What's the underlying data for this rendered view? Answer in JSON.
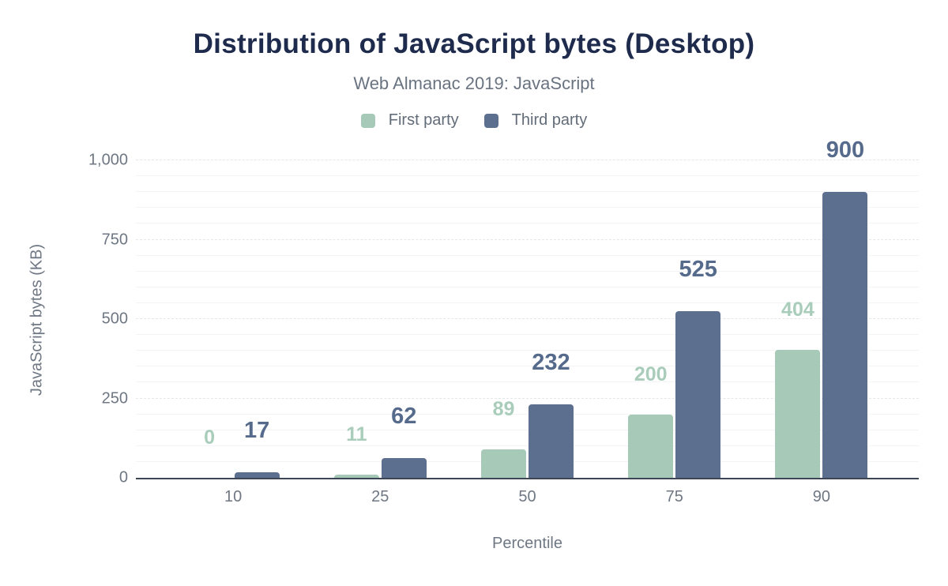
{
  "chart_data": {
    "type": "bar",
    "title": "Distribution of JavaScript bytes (Desktop)",
    "subtitle": "Web Almanac 2019: JavaScript",
    "xlabel": "Percentile",
    "ylabel": "JavaScript bytes (KB)",
    "categories": [
      "10",
      "25",
      "50",
      "75",
      "90"
    ],
    "series": [
      {
        "name": "First party",
        "color": "#a6c9b8",
        "label_color": "#a9cdba",
        "values": [
          0,
          11,
          89,
          200,
          404
        ]
      },
      {
        "name": "Third party",
        "color": "#5d6f8e",
        "label_color": "#566a8c",
        "values": [
          17,
          62,
          232,
          525,
          900
        ]
      }
    ],
    "ylim": [
      0,
      1000
    ],
    "yticks": [
      {
        "value": 0,
        "label": "0"
      },
      {
        "value": 250,
        "label": "250"
      },
      {
        "value": 500,
        "label": "500"
      },
      {
        "value": 750,
        "label": "750"
      },
      {
        "value": 1000,
        "label": "1,000"
      }
    ],
    "minor_grid_step": 50,
    "grid": true,
    "legend_position": "top"
  },
  "theme": {
    "background": "#ffffff",
    "title_color": "#1e2b4d",
    "subtitle_color": "#6a7380",
    "axis_text_color": "#6e7783",
    "legend_text_color": "#626c79",
    "major_grid_color": "#e4e7e9",
    "minor_grid_color": "#f3f4f5",
    "axis_line_color": "#3c4654"
  }
}
